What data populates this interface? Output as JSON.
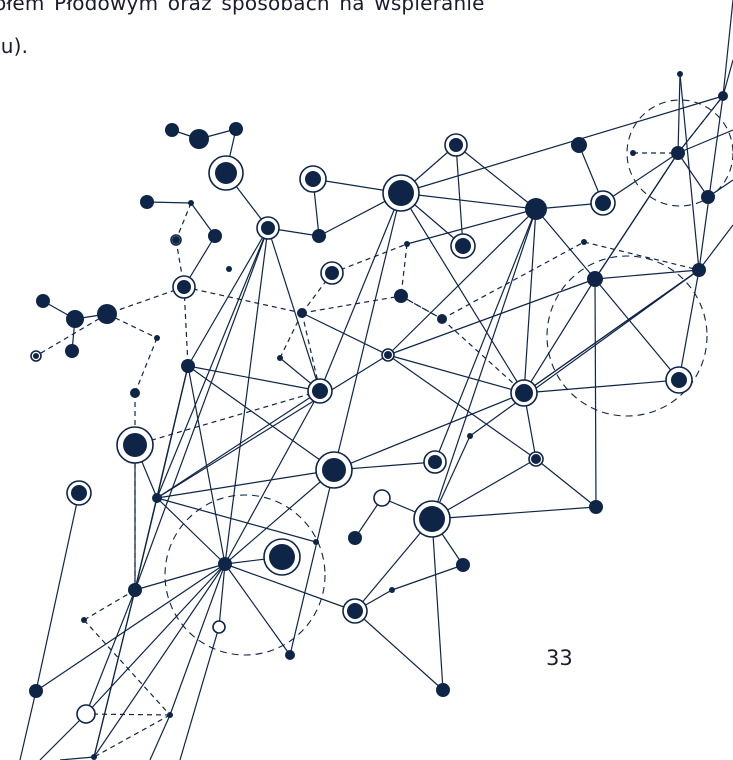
{
  "text": {
    "line1": "ołem Płodowym oraz sposobach na wspieranie",
    "line2": "iu)."
  },
  "page_number": "33",
  "colors": {
    "text": "#1b1d2e",
    "network": "#0f2547",
    "background": "#ffffff"
  },
  "decoration": {
    "name": "network-graph-illustration",
    "style": "connected nodes with solid and dashed edges"
  }
}
